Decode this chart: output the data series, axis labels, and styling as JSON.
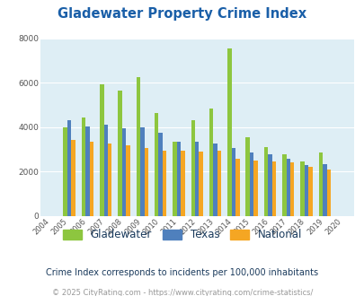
{
  "title": "Gladewater Property Crime Index",
  "years": [
    "2004",
    "2005",
    "2006",
    "2007",
    "2008",
    "2009",
    "2010",
    "2011",
    "2012",
    "2013",
    "2014",
    "2015",
    "2016",
    "2017",
    "2018",
    "2019",
    "2020"
  ],
  "gladewater": [
    0,
    4000,
    4450,
    5950,
    5650,
    6250,
    4650,
    3350,
    4300,
    4850,
    7550,
    3550,
    3100,
    2800,
    2450,
    2850,
    0
  ],
  "texas": [
    0,
    4300,
    4050,
    4100,
    3950,
    4000,
    3750,
    3350,
    3350,
    3250,
    3050,
    2850,
    2800,
    2600,
    2300,
    2350,
    0
  ],
  "national": [
    0,
    3450,
    3350,
    3250,
    3200,
    3050,
    2950,
    2950,
    2900,
    2950,
    2600,
    2500,
    2450,
    2400,
    2200,
    2100,
    0
  ],
  "gladewater_color": "#8dc63f",
  "texas_color": "#4f80bd",
  "national_color": "#f5a623",
  "bg_color": "#deeef5",
  "title_color": "#1a5fa8",
  "ylabel_max": 8000,
  "yticks": [
    0,
    2000,
    4000,
    6000,
    8000
  ],
  "subtitle": "Crime Index corresponds to incidents per 100,000 inhabitants",
  "footer": "© 2025 CityRating.com - https://www.cityrating.com/crime-statistics/",
  "subtitle_color": "#1a3a5c",
  "footer_color": "#999999"
}
